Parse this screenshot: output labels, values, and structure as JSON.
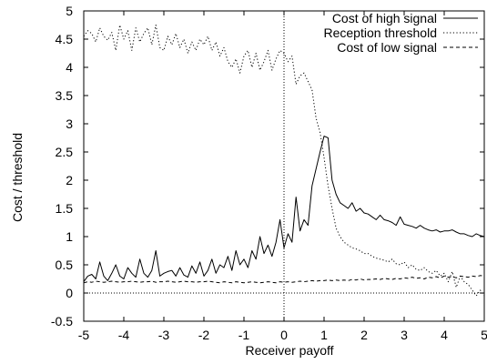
{
  "chart_data": {
    "type": "line",
    "xlabel": "Receiver payoff",
    "ylabel": "Cost / threshold",
    "xlim": [
      -5,
      5
    ],
    "ylim": [
      -0.5,
      5
    ],
    "xticks": [
      -5,
      -4,
      -3,
      -2,
      -1,
      0,
      1,
      2,
      3,
      4,
      5
    ],
    "yticks": [
      -0.5,
      0,
      0.5,
      1,
      1.5,
      2,
      2.5,
      3,
      3.5,
      4,
      4.5,
      5
    ],
    "ytick_labels": [
      "-0.5",
      "0",
      "0.5",
      "1",
      "1.5",
      "2",
      "2.5",
      "3",
      "3.5",
      "4",
      "4.5",
      "5"
    ],
    "reference_lines": {
      "x": 0,
      "y": 0
    },
    "legend_position": "top-right",
    "series": [
      {
        "name": "Cost of high signal",
        "style": "solid",
        "x": [
          -5.0,
          -4.9,
          -4.8,
          -4.7,
          -4.6,
          -4.5,
          -4.4,
          -4.3,
          -4.2,
          -4.1,
          -4.0,
          -3.9,
          -3.8,
          -3.7,
          -3.6,
          -3.5,
          -3.4,
          -3.3,
          -3.2,
          -3.1,
          -3.0,
          -2.9,
          -2.8,
          -2.7,
          -2.6,
          -2.5,
          -2.4,
          -2.3,
          -2.2,
          -2.1,
          -2.0,
          -1.9,
          -1.8,
          -1.7,
          -1.6,
          -1.5,
          -1.4,
          -1.3,
          -1.2,
          -1.1,
          -1.0,
          -0.9,
          -0.8,
          -0.7,
          -0.6,
          -0.5,
          -0.4,
          -0.3,
          -0.2,
          -0.1,
          0.0,
          0.1,
          0.2,
          0.3,
          0.4,
          0.5,
          0.6,
          0.7,
          0.8,
          0.9,
          1.0,
          1.1,
          1.2,
          1.3,
          1.4,
          1.5,
          1.6,
          1.7,
          1.8,
          1.9,
          2.0,
          2.1,
          2.2,
          2.3,
          2.4,
          2.5,
          2.6,
          2.7,
          2.8,
          2.9,
          3.0,
          3.1,
          3.2,
          3.3,
          3.4,
          3.5,
          3.6,
          3.7,
          3.8,
          3.9,
          4.0,
          4.1,
          4.2,
          4.3,
          4.4,
          4.5,
          4.6,
          4.7,
          4.8,
          4.9,
          5.0
        ],
        "y": [
          0.2,
          0.3,
          0.33,
          0.25,
          0.55,
          0.3,
          0.22,
          0.35,
          0.5,
          0.3,
          0.25,
          0.45,
          0.35,
          0.28,
          0.6,
          0.35,
          0.28,
          0.4,
          0.75,
          0.3,
          0.35,
          0.38,
          0.4,
          0.3,
          0.45,
          0.32,
          0.28,
          0.48,
          0.35,
          0.55,
          0.3,
          0.4,
          0.6,
          0.35,
          0.5,
          0.45,
          0.65,
          0.4,
          0.75,
          0.5,
          0.6,
          0.45,
          0.75,
          0.6,
          1.0,
          0.7,
          0.85,
          0.65,
          0.9,
          1.3,
          0.8,
          1.05,
          0.9,
          1.7,
          1.1,
          1.3,
          1.2,
          1.9,
          2.2,
          2.5,
          2.78,
          2.75,
          2.0,
          1.75,
          1.6,
          1.55,
          1.5,
          1.6,
          1.45,
          1.5,
          1.42,
          1.4,
          1.35,
          1.3,
          1.38,
          1.3,
          1.28,
          1.25,
          1.2,
          1.35,
          1.22,
          1.2,
          1.18,
          1.15,
          1.2,
          1.15,
          1.12,
          1.1,
          1.12,
          1.08,
          1.1,
          1.1,
          1.12,
          1.08,
          1.05,
          1.05,
          1.02,
          1.0,
          1.05,
          1.02,
          1.0
        ]
      },
      {
        "name": "Reception threshold",
        "style": "dotted",
        "x": [
          -5.0,
          -4.9,
          -4.8,
          -4.7,
          -4.6,
          -4.5,
          -4.4,
          -4.3,
          -4.2,
          -4.1,
          -4.0,
          -3.9,
          -3.8,
          -3.7,
          -3.6,
          -3.5,
          -3.4,
          -3.3,
          -3.2,
          -3.1,
          -3.0,
          -2.9,
          -2.8,
          -2.7,
          -2.6,
          -2.5,
          -2.4,
          -2.3,
          -2.2,
          -2.1,
          -2.0,
          -1.9,
          -1.8,
          -1.7,
          -1.6,
          -1.5,
          -1.4,
          -1.3,
          -1.2,
          -1.1,
          -1.0,
          -0.9,
          -0.8,
          -0.7,
          -0.6,
          -0.5,
          -0.4,
          -0.3,
          -0.2,
          -0.1,
          0.0,
          0.1,
          0.2,
          0.3,
          0.4,
          0.5,
          0.6,
          0.7,
          0.8,
          0.9,
          1.0,
          1.1,
          1.2,
          1.3,
          1.4,
          1.5,
          1.6,
          1.7,
          1.8,
          1.9,
          2.0,
          2.1,
          2.2,
          2.3,
          2.4,
          2.5,
          2.6,
          2.7,
          2.8,
          2.9,
          3.0,
          3.1,
          3.2,
          3.3,
          3.4,
          3.5,
          3.6,
          3.7,
          3.8,
          3.9,
          4.0,
          4.1,
          4.2,
          4.3,
          4.4,
          4.5,
          4.6,
          4.7,
          4.8,
          4.9,
          5.0
        ],
        "y": [
          4.55,
          4.65,
          4.6,
          4.45,
          4.7,
          4.55,
          4.48,
          4.62,
          4.3,
          4.75,
          4.5,
          4.65,
          4.3,
          4.7,
          4.45,
          4.6,
          4.7,
          4.4,
          4.75,
          4.35,
          4.3,
          4.55,
          4.4,
          4.6,
          4.35,
          4.5,
          4.25,
          4.45,
          4.3,
          4.5,
          4.4,
          4.55,
          4.3,
          4.45,
          4.2,
          4.35,
          4.1,
          4.0,
          4.15,
          3.9,
          4.2,
          4.3,
          4.0,
          4.25,
          3.95,
          4.1,
          4.3,
          3.95,
          4.15,
          4.3,
          4.25,
          4.1,
          4.2,
          3.7,
          3.85,
          3.9,
          3.75,
          3.6,
          3.1,
          2.85,
          2.4,
          1.9,
          1.5,
          1.15,
          1.0,
          0.9,
          0.85,
          0.8,
          0.78,
          0.75,
          0.7,
          0.7,
          0.65,
          0.62,
          0.6,
          0.58,
          0.55,
          0.6,
          0.52,
          0.5,
          0.55,
          0.45,
          0.5,
          0.42,
          0.4,
          0.45,
          0.38,
          0.35,
          0.4,
          0.3,
          0.35,
          0.2,
          0.38,
          0.1,
          0.3,
          0.2,
          0.15,
          0.05,
          -0.05,
          0.05,
          -0.05
        ]
      },
      {
        "name": "Cost of low signal",
        "style": "dashed",
        "x": [
          -5.0,
          -4.9,
          -4.8,
          -4.7,
          -4.6,
          -4.5,
          -4.4,
          -4.3,
          -4.2,
          -4.1,
          -4.0,
          -3.9,
          -3.8,
          -3.7,
          -3.6,
          -3.5,
          -3.4,
          -3.3,
          -3.2,
          -3.1,
          -3.0,
          -2.9,
          -2.8,
          -2.7,
          -2.6,
          -2.5,
          -2.4,
          -2.3,
          -2.2,
          -2.1,
          -2.0,
          -1.9,
          -1.8,
          -1.7,
          -1.6,
          -1.5,
          -1.4,
          -1.3,
          -1.2,
          -1.1,
          -1.0,
          -0.9,
          -0.8,
          -0.7,
          -0.6,
          -0.5,
          -0.4,
          -0.3,
          -0.2,
          -0.1,
          0.0,
          0.1,
          0.2,
          0.3,
          0.4,
          0.5,
          0.6,
          0.7,
          0.8,
          0.9,
          1.0,
          1.1,
          1.2,
          1.3,
          1.4,
          1.5,
          1.6,
          1.7,
          1.8,
          1.9,
          2.0,
          2.1,
          2.2,
          2.3,
          2.4,
          2.5,
          2.6,
          2.7,
          2.8,
          2.9,
          3.0,
          3.1,
          3.2,
          3.3,
          3.4,
          3.5,
          3.6,
          3.7,
          3.8,
          3.9,
          4.0,
          4.1,
          4.2,
          4.3,
          4.4,
          4.5,
          4.6,
          4.7,
          4.8,
          4.9,
          5.0
        ],
        "y": [
          0.18,
          0.2,
          0.19,
          0.21,
          0.2,
          0.19,
          0.2,
          0.21,
          0.2,
          0.19,
          0.2,
          0.2,
          0.21,
          0.2,
          0.19,
          0.2,
          0.2,
          0.21,
          0.19,
          0.2,
          0.2,
          0.21,
          0.2,
          0.19,
          0.2,
          0.21,
          0.2,
          0.2,
          0.19,
          0.2,
          0.2,
          0.21,
          0.2,
          0.19,
          0.18,
          0.2,
          0.19,
          0.18,
          0.2,
          0.19,
          0.18,
          0.19,
          0.2,
          0.19,
          0.18,
          0.19,
          0.2,
          0.19,
          0.18,
          0.2,
          0.19,
          0.2,
          0.19,
          0.2,
          0.21,
          0.2,
          0.21,
          0.22,
          0.21,
          0.22,
          0.22,
          0.23,
          0.22,
          0.23,
          0.22,
          0.23,
          0.22,
          0.24,
          0.23,
          0.25,
          0.23,
          0.24,
          0.24,
          0.25,
          0.24,
          0.26,
          0.25,
          0.24,
          0.26,
          0.25,
          0.27,
          0.26,
          0.28,
          0.26,
          0.27,
          0.25,
          0.28,
          0.27,
          0.29,
          0.27,
          0.3,
          0.28,
          0.29,
          0.27,
          0.3,
          0.29,
          0.28,
          0.3,
          0.29,
          0.31,
          0.3
        ]
      }
    ]
  }
}
